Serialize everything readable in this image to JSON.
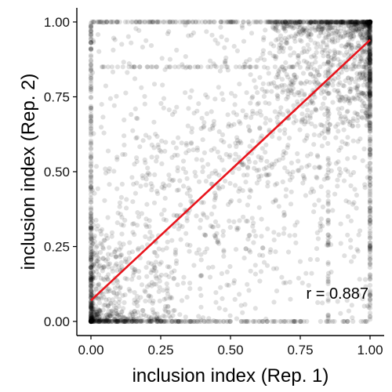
{
  "chart_data": {
    "type": "scatter",
    "xlabel": "inclusion index (Rep. 1)",
    "ylabel": "inclusion index (Rep. 2)",
    "xlim": [
      0,
      1
    ],
    "ylim": [
      0,
      1
    ],
    "xticks": [
      "0.00",
      "0.25",
      "0.50",
      "0.75",
      "1.00"
    ],
    "yticks": [
      "0.00",
      "0.25",
      "0.50",
      "0.75",
      "1.00"
    ],
    "point_color": "#000000",
    "point_opacity": 0.12,
    "sample_points": [
      [
        0.0,
        0.0
      ],
      [
        1.0,
        1.0
      ],
      [
        0.02,
        0.03
      ],
      [
        0.05,
        0.01
      ],
      [
        0.97,
        0.98
      ],
      [
        0.93,
        0.95
      ],
      [
        0.85,
        0.99
      ],
      [
        0.98,
        0.85
      ],
      [
        0.1,
        0.05
      ],
      [
        0.4,
        0.5
      ],
      [
        0.6,
        0.55
      ],
      [
        0.3,
        0.7
      ],
      [
        0.75,
        0.2
      ],
      [
        0.15,
        0.4
      ],
      [
        0.9,
        0.6
      ],
      [
        0.55,
        0.85
      ],
      [
        0.2,
        0.15
      ],
      [
        0.8,
        0.8
      ],
      [
        0.0,
        0.5
      ],
      [
        1.0,
        0.5
      ],
      [
        0.5,
        0.0
      ],
      [
        0.5,
        1.0
      ]
    ],
    "fit_line": {
      "x": [
        0.0,
        1.0
      ],
      "y": [
        0.07,
        0.94
      ],
      "color": "#e8141c"
    },
    "annotation": "r =  0.887",
    "grid": false
  }
}
